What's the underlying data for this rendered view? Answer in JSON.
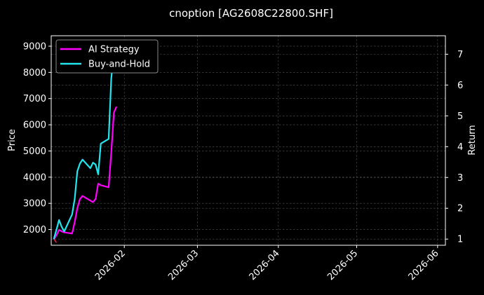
{
  "chart_data": {
    "type": "line",
    "title": "cnoption [AG2608C22800.SHF]",
    "ylabel": "Price",
    "y2label": "Return",
    "xlim": [
      "2026-01-04",
      "2026-06-04"
    ],
    "ylim": [
      1400,
      9400
    ],
    "y2lim": [
      0.8,
      7.6
    ],
    "x_ticks": [
      "2026-02",
      "2026-03",
      "2026-04",
      "2026-05",
      "2026-06"
    ],
    "y_ticks": [
      2000,
      3000,
      4000,
      5000,
      6000,
      7000,
      8000,
      9000
    ],
    "y2_ticks": [
      1,
      2,
      3,
      4,
      5,
      6,
      7
    ],
    "grid": true,
    "legend_position": "top-left",
    "price_series": {
      "x": [
        "2026-01-05",
        "2026-01-06"
      ],
      "values": [
        1650,
        1500
      ]
    },
    "series": [
      {
        "name": "AI Strategy",
        "color": "#ff00ff",
        "x": [
          "2026-01-05",
          "2026-01-06",
          "2026-01-07",
          "2026-01-08",
          "2026-01-09",
          "2026-01-12",
          "2026-01-13",
          "2026-01-14",
          "2026-01-15",
          "2026-01-16",
          "2026-01-19",
          "2026-01-20",
          "2026-01-21",
          "2026-01-22",
          "2026-01-23",
          "2026-01-26",
          "2026-01-27",
          "2026-01-28",
          "2026-01-29"
        ],
        "values": [
          1.0,
          1.12,
          1.3,
          1.25,
          1.22,
          1.18,
          1.55,
          2.0,
          2.3,
          2.4,
          2.25,
          2.2,
          2.3,
          2.8,
          2.75,
          2.68,
          3.8,
          5.1,
          5.3
        ]
      },
      {
        "name": "Buy-and-Hold",
        "color": "#22e5f0",
        "x": [
          "2026-01-05",
          "2026-01-06",
          "2026-01-07",
          "2026-01-08",
          "2026-01-09",
          "2026-01-12",
          "2026-01-13",
          "2026-01-14",
          "2026-01-15",
          "2026-01-16",
          "2026-01-19",
          "2026-01-20",
          "2026-01-21",
          "2026-01-22",
          "2026-01-23",
          "2026-01-26",
          "2026-01-27",
          "2026-01-28"
        ],
        "values": [
          1.0,
          1.3,
          1.62,
          1.4,
          1.25,
          1.8,
          2.3,
          3.2,
          3.45,
          3.58,
          3.3,
          3.48,
          3.42,
          3.1,
          4.1,
          4.25,
          6.2,
          7.1
        ]
      }
    ]
  }
}
